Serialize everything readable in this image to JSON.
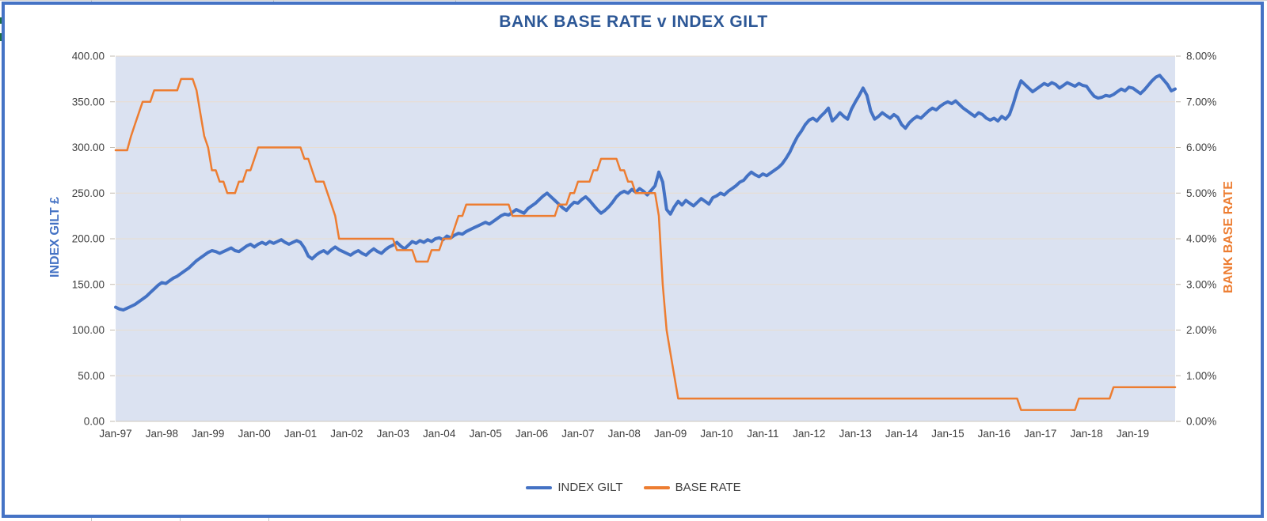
{
  "chart": {
    "title": "BANK BASE RATE v INDEX GILT",
    "left_axis_title": "INDEX GILT £",
    "right_axis_title": "BANK BASE RATE",
    "legend": [
      {
        "label": "INDEX GILT",
        "color": "#4472c4"
      },
      {
        "label": "BASE RATE",
        "color": "#ed7d31"
      }
    ],
    "colors": {
      "index_gilt_line": "#4472c4",
      "base_rate_line": "#ed7d31",
      "plot_background": "#dbe2f1",
      "gridline": "#e9ddcf",
      "title_text": "#2c5796",
      "tick_text": "#3f3f3f",
      "frame_border": "#4573c5"
    }
  },
  "chart_data": {
    "type": "line",
    "title": "BANK BASE RATE v INDEX GILT",
    "x_description": "Monthly, Jan-1997 to Dec-2019",
    "x_tick_labels": [
      "Jan-97",
      "Jan-98",
      "Jan-99",
      "Jan-00",
      "Jan-01",
      "Jan-02",
      "Jan-03",
      "Jan-04",
      "Jan-05",
      "Jan-06",
      "Jan-07",
      "Jan-08",
      "Jan-09",
      "Jan-10",
      "Jan-11",
      "Jan-12",
      "Jan-13",
      "Jan-14",
      "Jan-15",
      "Jan-16",
      "Jan-17",
      "Jan-18",
      "Jan-19"
    ],
    "x_tick_month_indices": [
      0,
      12,
      24,
      36,
      48,
      60,
      72,
      84,
      96,
      108,
      120,
      132,
      144,
      156,
      168,
      180,
      192,
      204,
      216,
      228,
      240,
      252,
      264
    ],
    "left_axis": {
      "label": "INDEX GILT £",
      "ylim": [
        0,
        400
      ],
      "tick_labels": [
        "400.00",
        "350.00",
        "300.00",
        "250.00",
        "200.00",
        "150.00",
        "100.00",
        "50.00",
        "0.00"
      ]
    },
    "right_axis": {
      "label": "BANK BASE RATE",
      "ylim": [
        0,
        8
      ],
      "tick_labels": [
        "8.00%",
        "7.00%",
        "6.00%",
        "5.00%",
        "4.00%",
        "3.00%",
        "2.00%",
        "1.00%",
        "0.00%"
      ]
    },
    "grid": "horizontal-only",
    "legend_position": "bottom-center",
    "series": [
      {
        "name": "INDEX GILT",
        "axis": "left",
        "color": "#4472c4",
        "values": [
          125,
          123,
          122,
          124,
          126,
          128,
          131,
          134,
          137,
          141,
          145,
          149,
          152,
          151,
          154,
          157,
          159,
          162,
          165,
          168,
          172,
          176,
          179,
          182,
          185,
          187,
          186,
          184,
          186,
          188,
          190,
          187,
          186,
          189,
          192,
          194,
          191,
          194,
          196,
          194,
          197,
          195,
          197,
          199,
          196,
          194,
          196,
          198,
          196,
          190,
          181,
          178,
          182,
          185,
          187,
          184,
          188,
          191,
          188,
          186,
          184,
          182,
          185,
          187,
          184,
          182,
          186,
          189,
          186,
          184,
          188,
          191,
          193,
          196,
          192,
          189,
          193,
          197,
          195,
          198,
          196,
          199,
          197,
          200,
          201,
          199,
          203,
          201,
          204,
          206,
          205,
          208,
          210,
          212,
          214,
          216,
          218,
          216,
          219,
          222,
          225,
          227,
          226,
          229,
          232,
          230,
          228,
          233,
          236,
          239,
          243,
          247,
          250,
          246,
          242,
          238,
          234,
          231,
          236,
          240,
          239,
          243,
          246,
          242,
          237,
          232,
          228,
          231,
          235,
          240,
          246,
          250,
          252,
          250,
          254,
          251,
          255,
          252,
          248,
          253,
          258,
          273,
          262,
          232,
          227,
          235,
          241,
          237,
          242,
          239,
          236,
          240,
          244,
          241,
          238,
          245,
          247,
          250,
          248,
          252,
          255,
          258,
          262,
          264,
          269,
          273,
          270,
          268,
          271,
          269,
          272,
          275,
          278,
          282,
          288,
          295,
          304,
          312,
          318,
          325,
          330,
          332,
          329,
          334,
          338,
          343,
          329,
          333,
          338,
          334,
          331,
          342,
          350,
          357,
          365,
          357,
          340,
          331,
          334,
          338,
          335,
          332,
          336,
          333,
          325,
          321,
          327,
          331,
          334,
          332,
          336,
          340,
          343,
          341,
          345,
          348,
          350,
          348,
          351,
          347,
          343,
          340,
          337,
          334,
          338,
          336,
          332,
          330,
          332,
          329,
          334,
          331,
          336,
          348,
          362,
          373,
          369,
          365,
          361,
          364,
          367,
          370,
          368,
          371,
          369,
          365,
          368,
          371,
          369,
          367,
          370,
          368,
          367,
          361,
          356,
          354,
          355,
          357,
          356,
          358,
          361,
          364,
          362,
          366,
          365,
          362,
          359,
          363,
          368,
          373,
          377,
          379,
          374,
          369,
          362,
          364
        ]
      },
      {
        "name": "BASE RATE",
        "axis": "right",
        "color": "#ed7d31",
        "values": [
          5.94,
          5.94,
          5.94,
          5.94,
          6.25,
          6.5,
          6.75,
          7.0,
          7.0,
          7.0,
          7.25,
          7.25,
          7.25,
          7.25,
          7.25,
          7.25,
          7.25,
          7.5,
          7.5,
          7.5,
          7.5,
          7.25,
          6.75,
          6.25,
          6.0,
          5.5,
          5.5,
          5.25,
          5.25,
          5.0,
          5.0,
          5.0,
          5.25,
          5.25,
          5.5,
          5.5,
          5.75,
          6.0,
          6.0,
          6.0,
          6.0,
          6.0,
          6.0,
          6.0,
          6.0,
          6.0,
          6.0,
          6.0,
          6.0,
          5.75,
          5.75,
          5.5,
          5.25,
          5.25,
          5.25,
          5.0,
          4.75,
          4.5,
          4.0,
          4.0,
          4.0,
          4.0,
          4.0,
          4.0,
          4.0,
          4.0,
          4.0,
          4.0,
          4.0,
          4.0,
          4.0,
          4.0,
          4.0,
          3.75,
          3.75,
          3.75,
          3.75,
          3.75,
          3.5,
          3.5,
          3.5,
          3.5,
          3.75,
          3.75,
          3.75,
          4.0,
          4.0,
          4.0,
          4.25,
          4.5,
          4.5,
          4.75,
          4.75,
          4.75,
          4.75,
          4.75,
          4.75,
          4.75,
          4.75,
          4.75,
          4.75,
          4.75,
          4.75,
          4.5,
          4.5,
          4.5,
          4.5,
          4.5,
          4.5,
          4.5,
          4.5,
          4.5,
          4.5,
          4.5,
          4.5,
          4.75,
          4.75,
          4.75,
          5.0,
          5.0,
          5.25,
          5.25,
          5.25,
          5.25,
          5.5,
          5.5,
          5.75,
          5.75,
          5.75,
          5.75,
          5.75,
          5.5,
          5.5,
          5.25,
          5.25,
          5.0,
          5.0,
          5.0,
          5.0,
          5.0,
          5.0,
          4.5,
          3.0,
          2.0,
          1.5,
          1.0,
          0.5,
          0.5,
          0.5,
          0.5,
          0.5,
          0.5,
          0.5,
          0.5,
          0.5,
          0.5,
          0.5,
          0.5,
          0.5,
          0.5,
          0.5,
          0.5,
          0.5,
          0.5,
          0.5,
          0.5,
          0.5,
          0.5,
          0.5,
          0.5,
          0.5,
          0.5,
          0.5,
          0.5,
          0.5,
          0.5,
          0.5,
          0.5,
          0.5,
          0.5,
          0.5,
          0.5,
          0.5,
          0.5,
          0.5,
          0.5,
          0.5,
          0.5,
          0.5,
          0.5,
          0.5,
          0.5,
          0.5,
          0.5,
          0.5,
          0.5,
          0.5,
          0.5,
          0.5,
          0.5,
          0.5,
          0.5,
          0.5,
          0.5,
          0.5,
          0.5,
          0.5,
          0.5,
          0.5,
          0.5,
          0.5,
          0.5,
          0.5,
          0.5,
          0.5,
          0.5,
          0.5,
          0.5,
          0.5,
          0.5,
          0.5,
          0.5,
          0.5,
          0.5,
          0.5,
          0.5,
          0.5,
          0.5,
          0.5,
          0.5,
          0.5,
          0.5,
          0.5,
          0.5,
          0.5,
          0.25,
          0.25,
          0.25,
          0.25,
          0.25,
          0.25,
          0.25,
          0.25,
          0.25,
          0.25,
          0.25,
          0.25,
          0.25,
          0.25,
          0.25,
          0.5,
          0.5,
          0.5,
          0.5,
          0.5,
          0.5,
          0.5,
          0.5,
          0.5,
          0.75,
          0.75,
          0.75,
          0.75,
          0.75,
          0.75,
          0.75,
          0.75,
          0.75,
          0.75,
          0.75,
          0.75,
          0.75,
          0.75,
          0.75,
          0.75,
          0.75
        ]
      }
    ]
  }
}
